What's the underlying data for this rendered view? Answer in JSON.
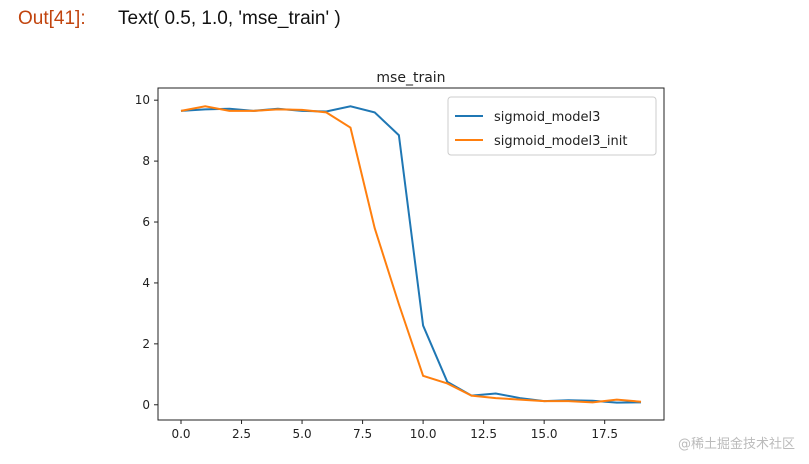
{
  "cell": {
    "prompt": "Out[41]:",
    "output_text": "Text( 0.5, 1.0, 'mse_train' )"
  },
  "watermark": "@稀土掘金技术社区",
  "chart_data": {
    "type": "line",
    "title": "mse_train",
    "xlabel": "",
    "ylabel": "",
    "xlim": [
      -0.95,
      19.95
    ],
    "ylim": [
      -0.5,
      10.4
    ],
    "xticks": [
      "0.0",
      "2.5",
      "5.0",
      "7.5",
      "10.0",
      "12.5",
      "15.0",
      "17.5"
    ],
    "yticks": [
      "0",
      "2",
      "4",
      "6",
      "8",
      "10"
    ],
    "grid": false,
    "legend": "top-right",
    "x": [
      0,
      1,
      2,
      3,
      4,
      5,
      6,
      7,
      8,
      9,
      10,
      11,
      12,
      13,
      14,
      15,
      16,
      17,
      18,
      19
    ],
    "series": [
      {
        "name": "sigmoid_model3",
        "color": "#1f77b4",
        "values": [
          9.65,
          9.7,
          9.72,
          9.65,
          9.72,
          9.65,
          9.63,
          9.8,
          9.6,
          8.85,
          2.6,
          0.75,
          0.3,
          0.37,
          0.22,
          0.12,
          0.15,
          0.13,
          0.07,
          0.08
        ]
      },
      {
        "name": "sigmoid_model3_init",
        "color": "#ff7f0e",
        "values": [
          9.65,
          9.8,
          9.65,
          9.65,
          9.7,
          9.68,
          9.6,
          9.1,
          5.8,
          3.3,
          0.95,
          0.7,
          0.3,
          0.22,
          0.17,
          0.12,
          0.12,
          0.08,
          0.17,
          0.1
        ]
      }
    ]
  }
}
